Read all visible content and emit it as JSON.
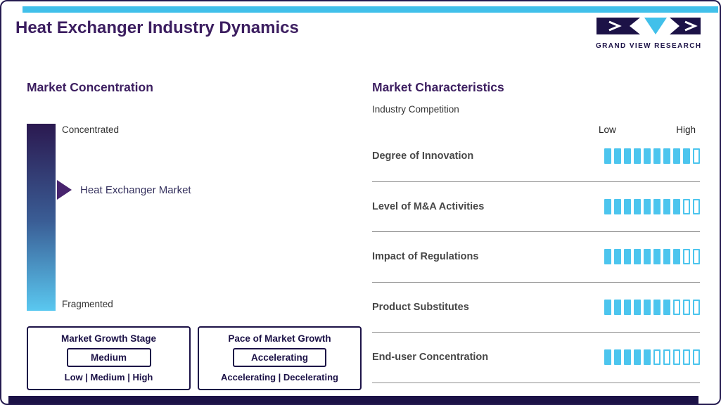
{
  "header": {
    "title": "Heat Exchanger Industry Dynamics",
    "brand": "GRAND VIEW RESEARCH"
  },
  "market_concentration": {
    "heading": "Market Concentration",
    "scale_top": "Concentrated",
    "scale_bottom": "Fragmented",
    "marker_label": "Heat Exchanger Market",
    "marker_position_from_top": 0.35
  },
  "growth_boxes": [
    {
      "title": "Market Growth Stage",
      "value": "Medium",
      "options": "Low | Medium | High"
    },
    {
      "title": "Pace of Market Growth",
      "value": "Accelerating",
      "options": "Accelerating | Decelerating"
    }
  ],
  "market_characteristics": {
    "heading": "Market Characteristics",
    "subheading": "Industry Competition",
    "scale_low": "Low",
    "scale_high": "High",
    "rows": [
      {
        "label": "Degree of Innovation",
        "filled": 9,
        "total": 10
      },
      {
        "label": "Level of M&A Activities",
        "filled": 8,
        "total": 10
      },
      {
        "label": "Impact of Regulations",
        "filled": 8,
        "total": 10
      },
      {
        "label": "Product Substitutes",
        "filled": 7,
        "total": 10
      },
      {
        "label": "End-user Concentration",
        "filled": 5,
        "total": 10
      }
    ]
  },
  "colors": {
    "accent_cyan": "#41c0ea",
    "segment_cyan": "#4cc5ee",
    "navy": "#1c1247",
    "heading_purple": "#3c1e60",
    "marker_purple": "#48246e",
    "gradient_top": "#2b1950",
    "gradient_bottom": "#5ac8f0"
  },
  "chart_data": {
    "type": "bar",
    "title": "Market Characteristics — Industry Competition",
    "categories": [
      "Degree of Innovation",
      "Level of M&A Activities",
      "Impact of Regulations",
      "Product Substitutes",
      "End-user Concentration"
    ],
    "values": [
      9,
      8,
      8,
      7,
      5
    ],
    "value_scale": {
      "min": 0,
      "max": 10,
      "min_label": "Low",
      "max_label": "High"
    },
    "legend_position": "none",
    "grid": false,
    "concentration_scale": {
      "top_label": "Concentrated",
      "bottom_label": "Fragmented",
      "marker_label": "Heat Exchanger Market",
      "marker_position_from_top": 0.35
    }
  }
}
